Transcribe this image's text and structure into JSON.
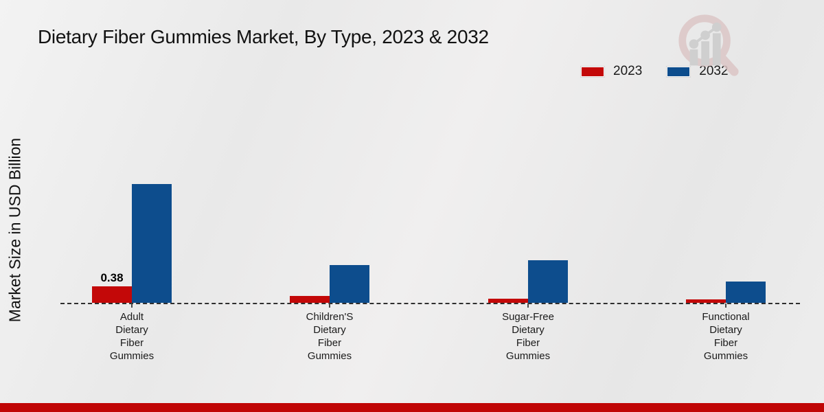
{
  "title": "Dietary Fiber Gummies Market, By Type, 2023 & 2032",
  "ylabel": "Market Size in USD Billion",
  "footer_bar_color": "#c00505",
  "logo_icon": "magnifier-bar-chart-watermark",
  "chart_data": {
    "type": "bar",
    "title": "Dietary Fiber Gummies Market, By Type, 2023 & 2032",
    "xlabel": "",
    "ylabel": "Market Size in USD Billion",
    "categories": [
      "Adult Dietary Fiber Gummies",
      "Children'S Dietary Fiber Gummies",
      "Sugar-Free Dietary Fiber Gummies",
      "Functional Dietary Fiber Gummies"
    ],
    "category_lines": [
      [
        "Adult",
        "Dietary",
        "Fiber",
        "Gummies"
      ],
      [
        "Children'S",
        "Dietary",
        "Fiber",
        "Gummies"
      ],
      [
        "Sugar-Free",
        "Dietary",
        "Fiber",
        "Gummies"
      ],
      [
        "Functional",
        "Dietary",
        "Fiber",
        "Gummies"
      ]
    ],
    "series": [
      {
        "name": "2023",
        "color": "#c30808",
        "values": [
          0.38,
          0.16,
          0.1,
          0.08
        ],
        "value_labels": [
          "0.38",
          "",
          "",
          ""
        ]
      },
      {
        "name": "2032",
        "color": "#0d4d8d",
        "values": [
          2.74,
          0.87,
          0.98,
          0.49
        ],
        "value_labels": [
          "",
          "",
          "",
          ""
        ]
      }
    ],
    "ylim": [
      0,
      3
    ],
    "grid": false,
    "legend_position": "top-right",
    "baseline_style": "dashed"
  }
}
